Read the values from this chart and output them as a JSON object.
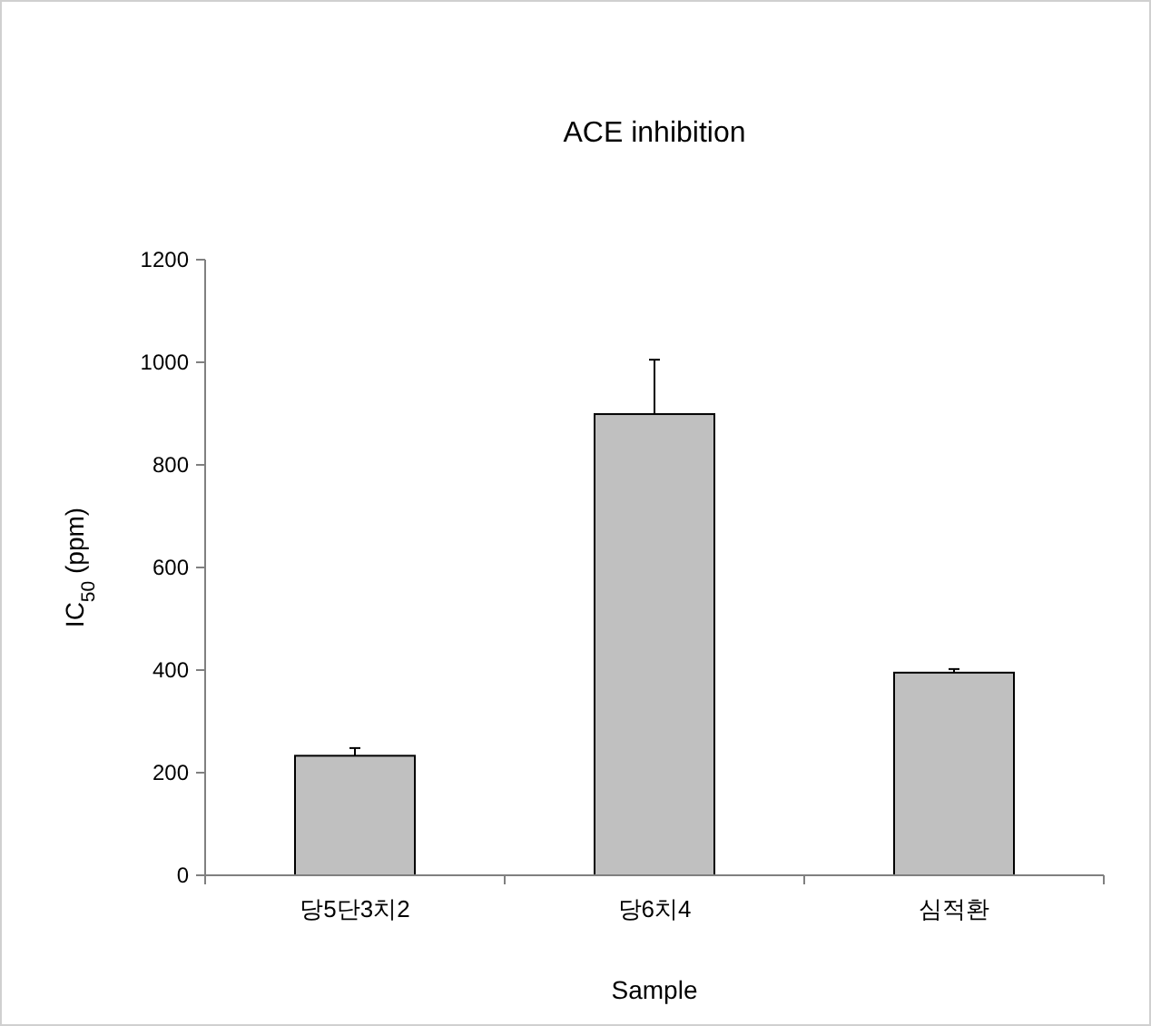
{
  "chart_data": {
    "type": "bar",
    "title": "ACE inhibition",
    "xlabel": "Sample",
    "ylabel": "IC$_{50}$ (ppm)",
    "categories": [
      "당5단3치2",
      "당6치4",
      "심적환"
    ],
    "values": [
      233,
      899,
      395
    ],
    "errors": [
      [
        233,
        248
      ],
      [
        899,
        1005
      ],
      [
        395,
        402
      ]
    ],
    "color": "#c0c0c0",
    "ylim": [
      0,
      1200
    ],
    "yticks": [
      0,
      200,
      400,
      600,
      800,
      1000,
      1200
    ],
    "grid": false
  }
}
